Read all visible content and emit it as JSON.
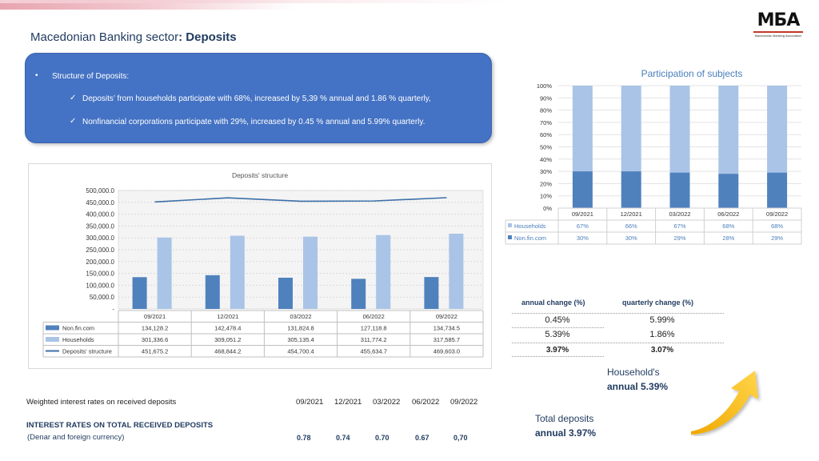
{
  "header": {
    "title_prefix": "Macedonian Banking sector",
    "title_bold": ": Deposits",
    "logo": {
      "mark": "МБА",
      "subtitle": "Macedonian Banking Association"
    }
  },
  "structure_box": {
    "bullet": "•",
    "label": "Structure of Deposits:",
    "check": "✓",
    "items": [
      "Deposits’ from households participate with 68%, increased by 5,39 % annual and 1.86 % quarterly,",
      "Nonfinancial corporations participate with 29%, increased  by 0.45 % annual  and 5.99% quarterly."
    ]
  },
  "chart_data": [
    {
      "type": "bar",
      "title": "Deposits' structure",
      "categories": [
        "09/2021",
        "12/2021",
        "03/2022",
        "06/2022",
        "09/2022"
      ],
      "y_tick_labels": [
        "-",
        "50,000.0",
        "100,000.0",
        "150,000.0",
        "200,000.0",
        "250,000.0",
        "300,000.0",
        "350,000.0",
        "400,000.0",
        "450,000.0",
        "500,000.0"
      ],
      "ylim": [
        0,
        500000
      ],
      "series": [
        {
          "name": "Non.fin.com",
          "kind": "bar",
          "color": "#4f81bd",
          "values": [
            134128.2,
            142478.4,
            131824.8,
            127118.8,
            134734.5
          ],
          "labels": [
            "134,128.2",
            "142,478.4",
            "131,824.8",
            "127,118.8",
            "134,734.5"
          ]
        },
        {
          "name": "Households",
          "kind": "bar",
          "color": "#a9c4e6",
          "values": [
            301336.6,
            309051.2,
            305135.4,
            311774.2,
            317585.7
          ],
          "labels": [
            "301,336.6",
            "309,051.2",
            "305,135.4",
            "311,774.2",
            "317,585.7"
          ]
        },
        {
          "name": "Deposits' structure",
          "kind": "line",
          "color": "#3c6fa8",
          "values": [
            451675.2,
            468844.2,
            454700.4,
            455634.7,
            469603.0
          ],
          "labels": [
            "451,675.2",
            "468,844.2",
            "454,700.4",
            "455,634.7",
            "469,603.0"
          ]
        }
      ],
      "legend": "data-table"
    },
    {
      "type": "bar",
      "stacked": true,
      "percent": true,
      "title": "Participation of subjects",
      "categories": [
        "09/2021",
        "12/2021",
        "03/2022",
        "06/2022",
        "09/2022"
      ],
      "y_tick_labels": [
        "0%",
        "10%",
        "20%",
        "30%",
        "40%",
        "50%",
        "60%",
        "70%",
        "80%",
        "90%",
        "100%"
      ],
      "ylim": [
        0,
        100
      ],
      "series": [
        {
          "name": "Households",
          "color": "#a9c4e6",
          "values": [
            67,
            66,
            67,
            68,
            68
          ],
          "labels": [
            "67%",
            "66%",
            "67%",
            "68%",
            "68%"
          ]
        },
        {
          "name": "Non.fin.com",
          "color": "#4f81bd",
          "values": [
            30,
            30,
            29,
            28,
            29
          ],
          "labels": [
            "30%",
            "30%",
            "29%",
            "28%",
            "29%"
          ]
        }
      ],
      "legend": "data-table"
    }
  ],
  "change_table": {
    "col1_header": "annual change (%)",
    "col2_header": "quarterly change (%)",
    "rows": [
      {
        "annual": "0.45%",
        "quarterly": "5.99%"
      },
      {
        "annual": "5.39%",
        "quarterly": "1.86%"
      },
      {
        "annual": "3.97%",
        "quarterly": "3.07%"
      }
    ]
  },
  "highlights": {
    "household_label": "Household's",
    "household_value": "annual 5.39%",
    "total_label": "Total deposits",
    "total_value": "annual 3.97%",
    "arrow_color": "#f5b800"
  },
  "interest_rates": {
    "title": "Weighted interest rates on received deposits",
    "periods": [
      "09/2021",
      "12/2021",
      "03/2022",
      "06/2022",
      "09/2022"
    ],
    "row_title": "INTEREST RATES ON TOTAL RECEIVED DEPOSITS",
    "row_subtitle": "(Denar and foreign currency)",
    "values": [
      "0.78",
      "0.74",
      "0.70",
      "0.67",
      "0,70"
    ]
  }
}
